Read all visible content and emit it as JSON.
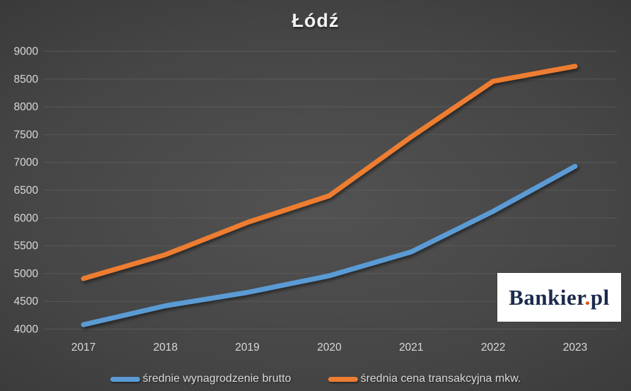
{
  "chart_data": {
    "type": "line",
    "title": "Łódź",
    "categories": [
      "2017",
      "2018",
      "2019",
      "2020",
      "2021",
      "2022",
      "2023"
    ],
    "series": [
      {
        "name": "średnie wynagrodzenie brutto",
        "color": "#5B9BD5",
        "values": [
          4080,
          4420,
          4660,
          4960,
          5390,
          6120,
          6930
        ]
      },
      {
        "name": "średnia cena transakcyjna mkw.",
        "color": "#ED7D31",
        "values": [
          4910,
          5340,
          5920,
          6400,
          7460,
          8460,
          8730
        ]
      }
    ],
    "ylim": [
      4000,
      9000
    ],
    "ytick_step": 500,
    "ytick_labels": [
      "4000",
      "4500",
      "5000",
      "5500",
      "6000",
      "6500",
      "7000",
      "7500",
      "8000",
      "8500",
      "9000"
    ],
    "grid": true,
    "legend_position": "bottom",
    "gridline_color": "#606060",
    "axis_label_color": "#d9d9d9"
  },
  "logo": {
    "brand": "Bankier",
    "dot": ".",
    "suffix": "pl",
    "brand_color": "#1b2b4d",
    "dot_color": "#e8500e"
  }
}
